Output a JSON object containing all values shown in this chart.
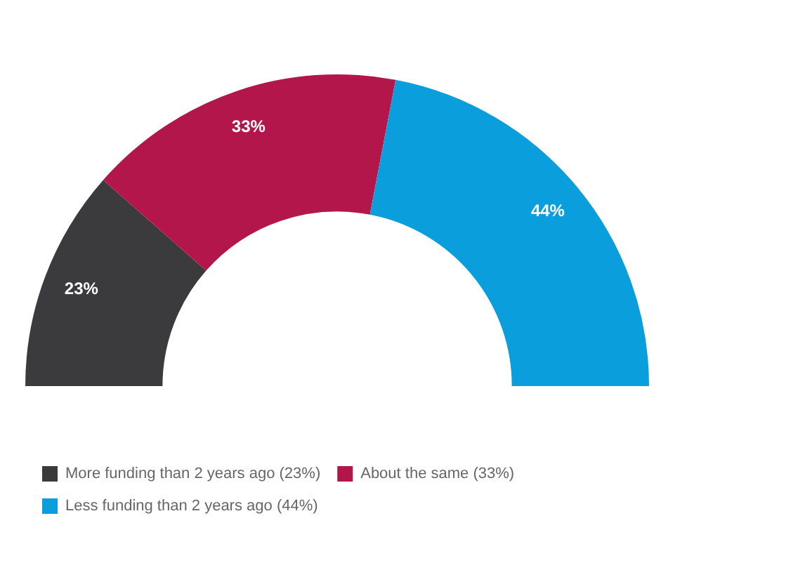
{
  "chart_data": {
    "type": "donut",
    "categories": [
      "More funding than 2 years ago (23%)",
      "About the same (33%)",
      "Less funding than 2 years ago (44%)"
    ],
    "values": [
      23,
      33,
      44
    ],
    "colors": [
      "#3b3b3d",
      "#b3164b",
      "#0a9fdc"
    ],
    "value_labels": [
      "23%",
      "33%",
      "44%"
    ],
    "legend": "bottom"
  }
}
